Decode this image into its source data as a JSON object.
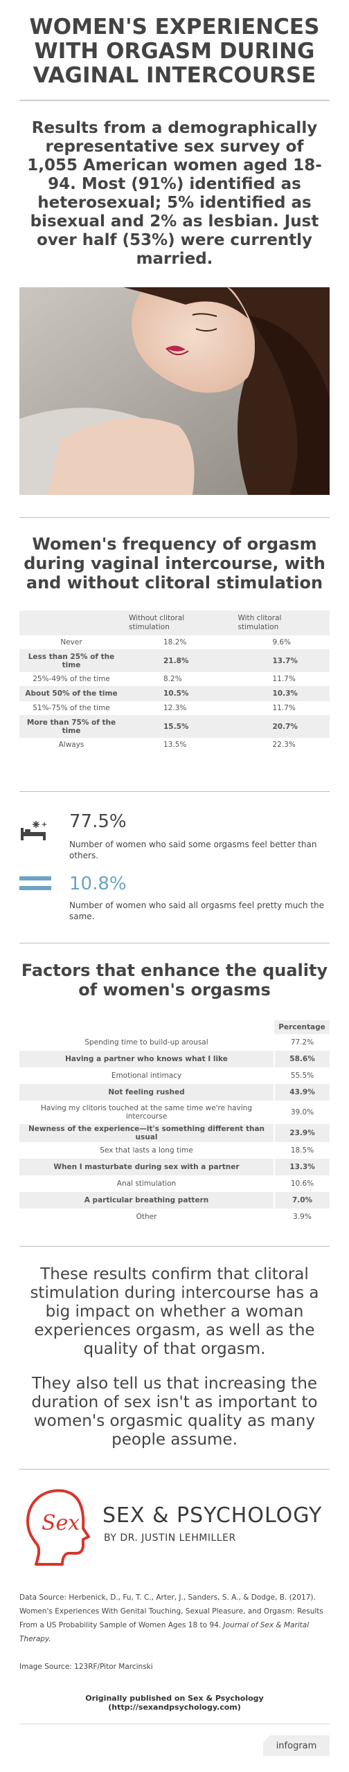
{
  "header": {
    "title": "WOMEN'S EXPERIENCES WITH ORGASM DURING VAGINAL INTERCOURSE"
  },
  "intro": {
    "text": "Results from a demographically representative sex survey of 1,055 American women aged 18-94. Most (91%) identified as heterosexual; 5% identified as bisexual and 2% as lesbian. Just over half (53%) were currently married."
  },
  "frequency": {
    "title": "Women's frequency of orgasm during vaginal intercourse, with and without clitoral stimulation",
    "headers": [
      "",
      "Without clitoral stimulation",
      "With clitoral stimulation"
    ],
    "rows": [
      {
        "label": "Never",
        "without": "18.2%",
        "with": "9.6%"
      },
      {
        "label": "Less than 25% of the time",
        "without": "21.8%",
        "with": "13.7%"
      },
      {
        "label": "25%-49% of the time",
        "without": "8.2%",
        "with": "11.7%"
      },
      {
        "label": "About 50% of the time",
        "without": "10.5%",
        "with": "10.3%"
      },
      {
        "label": "51%-75% of the time",
        "without": "12.3%",
        "with": "11.7%"
      },
      {
        "label": "More than 75% of the time",
        "without": "15.5%",
        "with": "20.7%"
      },
      {
        "label": "Always",
        "without": "13.5%",
        "with": "22.3%"
      }
    ]
  },
  "stats": [
    {
      "value": "77.5%",
      "text": "Number of women who said some orgasms feel better than others.",
      "icon": "bed-fireworks-icon",
      "color": "#444444"
    },
    {
      "value": "10.8%",
      "text": "Number of women who said all orgasms feel pretty much the same.",
      "icon": "equals-icon",
      "color": "#6aa3c8"
    }
  ],
  "factors": {
    "title": "Factors that enhance the quality of women's orgasms",
    "header": "Percentage",
    "rows": [
      {
        "label": "Spending time to build-up arousal",
        "value": "77.2%"
      },
      {
        "label": "Having a partner who knows what I like",
        "value": "58.6%"
      },
      {
        "label": "Emotional intimacy",
        "value": "55.5%"
      },
      {
        "label": "Not feeling rushed",
        "value": "43.9%"
      },
      {
        "label": "Having my clitoris touched at the same time we're having intercourse",
        "value": "39.0%"
      },
      {
        "label": "Newness of the experience—it's something different than usual",
        "value": "23.9%"
      },
      {
        "label": "Sex that lasts a long time",
        "value": "18.5%"
      },
      {
        "label": "When I masturbate during sex with a partner",
        "value": "13.3%"
      },
      {
        "label": "Anal stimulation",
        "value": "10.6%"
      },
      {
        "label": "A particular breathing pattern",
        "value": "7.0%"
      },
      {
        "label": "Other",
        "value": "3.9%"
      }
    ]
  },
  "conclusion": {
    "p1": "These results confirm that clitoral stimulation during intercourse has a big impact on whether a woman experiences orgasm, as well as the quality of that orgasm.",
    "p2": "They also tell us that increasing the duration of sex isn't as important to women's orgasmic quality as many people assume."
  },
  "brand": {
    "name": "SEX & PSYCHOLOGY",
    "byline": "BY DR. JUSTIN LEHMILLER",
    "logo_text": "Sex",
    "accent": "#d9342b"
  },
  "sources": {
    "data_source": "Data Source: Herbenick, D., Fu, T. C., Arter, J., Sanders, S. A., & Dodge, B. (2017). Women's Experiences With Genital Touching, Sexual Pleasure, and Orgasm: Results From a US Probability Sample of Women Ages 18 to 94.",
    "journal": "Journal of Sex & Marital Therapy.",
    "image_source": "Image Source: 123RF/Pitor Marcinski",
    "published": "Originally published on Sex & Psychology (http://sexandpsychology.com)"
  },
  "footer": {
    "badge": "infogram"
  }
}
